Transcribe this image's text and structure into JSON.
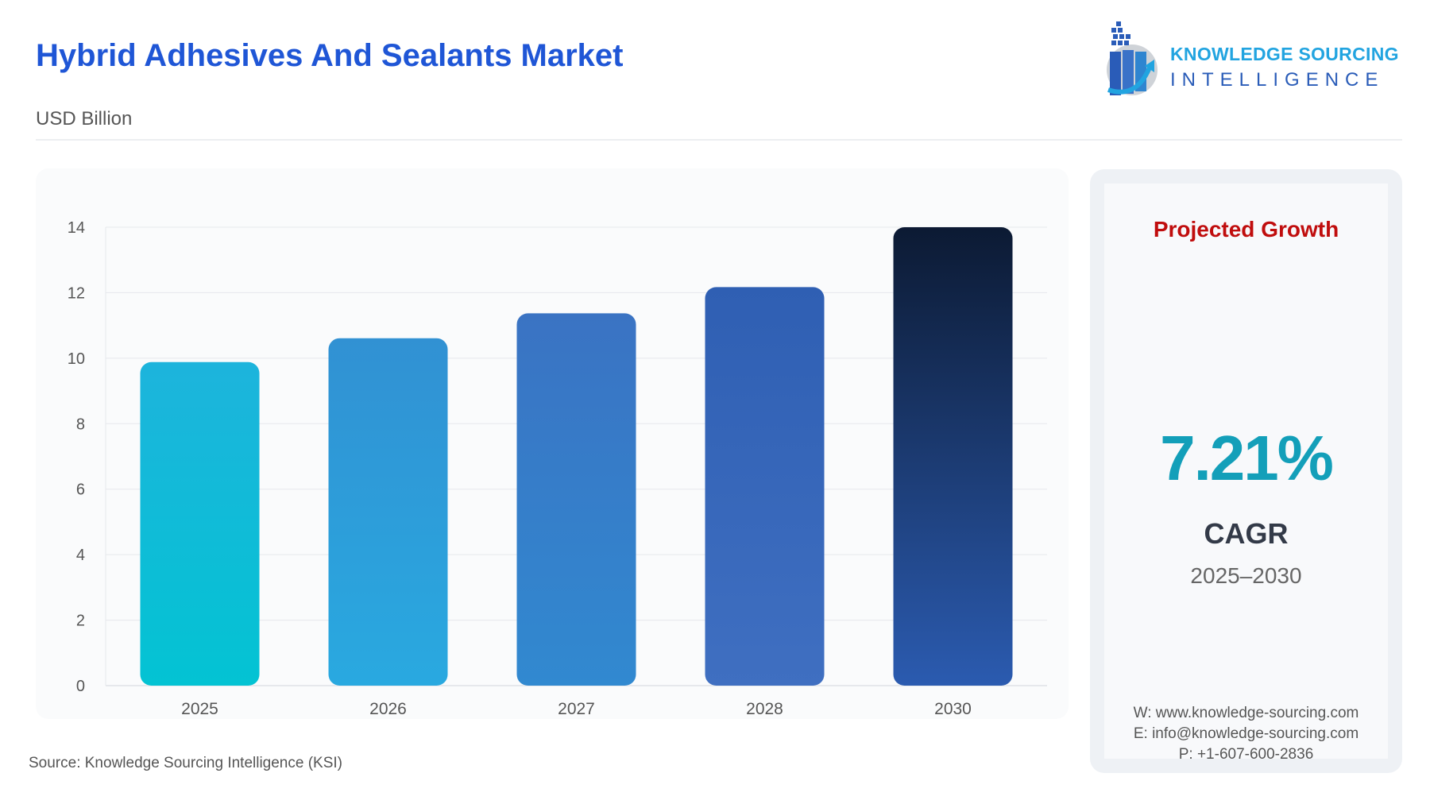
{
  "header": {
    "title": "Hybrid Adhesives And Sealants Market",
    "subtitle": "USD Billion"
  },
  "logo": {
    "line1": "KNOWLEDGE SOURCING",
    "line2": "INTELLIGENCE"
  },
  "source": "Source: Knowledge Sourcing Intelligence (KSI)",
  "panel": {
    "heading": "Projected Growth",
    "cagr_value": "7.21%",
    "cagr_label": "CAGR",
    "period": "2025–2030",
    "website": "W: www.knowledge-sourcing.com",
    "email": "E: info@knowledge-sourcing.com",
    "phone": "P: +1-607-600-2836"
  },
  "chart_data": {
    "type": "bar",
    "categories": [
      "2025",
      "2026",
      "2027",
      "2028",
      "2030"
    ],
    "values": [
      9.88,
      10.61,
      11.37,
      12.17,
      14.0
    ],
    "ylim": [
      0,
      14
    ],
    "yticks": [
      0,
      2,
      4,
      6,
      8,
      10,
      12,
      14
    ],
    "grid": true,
    "xlabel": "",
    "ylabel": "",
    "colors": [
      [
        "#1db4dc",
        "#03c3d3"
      ],
      [
        "#3191d3",
        "#29a9e0"
      ],
      [
        "#3a73c3",
        "#3189d0"
      ],
      [
        "#2f5fb3",
        "#3f6fc1"
      ],
      [
        "#0c1a33",
        "#2b5bb0"
      ]
    ]
  }
}
